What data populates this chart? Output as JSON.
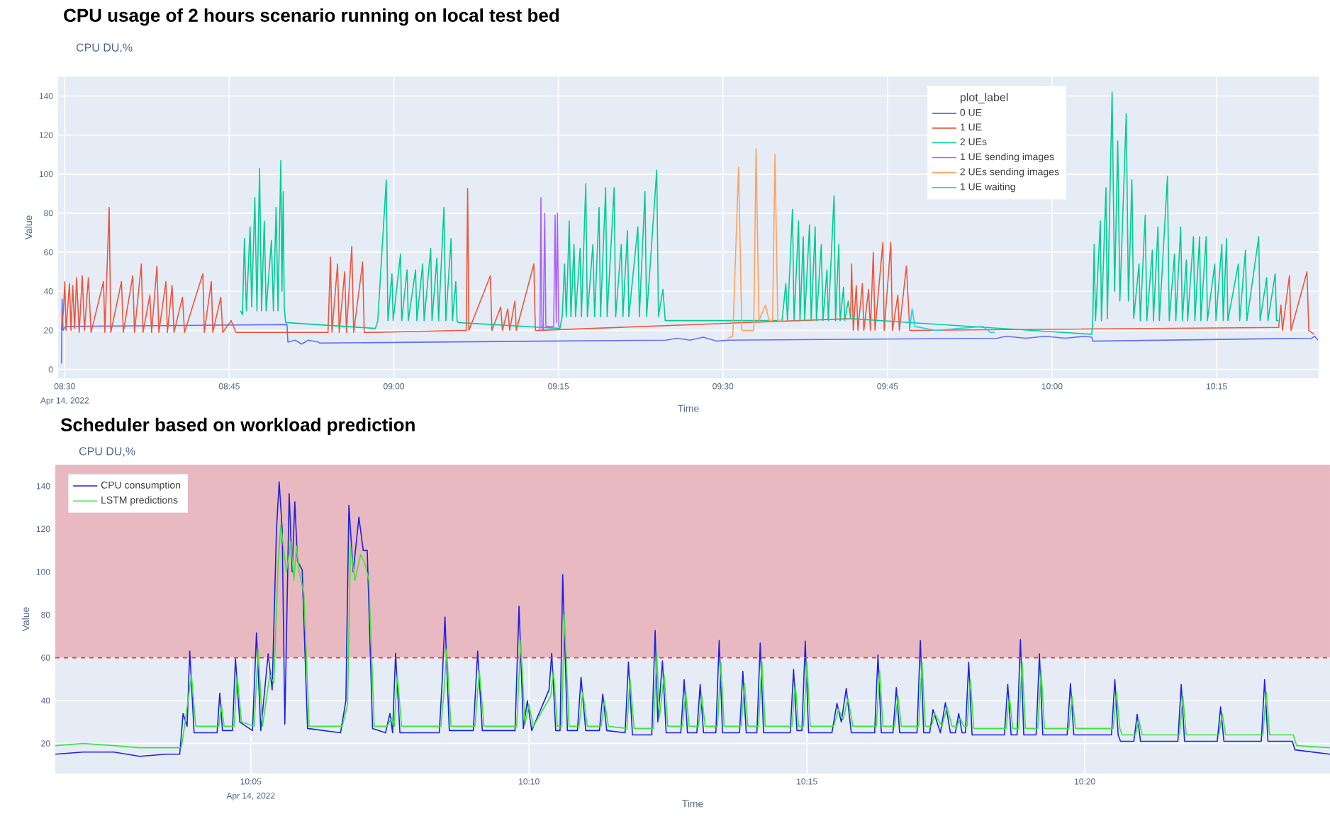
{
  "chart_data": [
    {
      "type": "line",
      "title": "CPU usage of 2 hours scenario running on local test bed",
      "subtitle": "CPU DU,%",
      "xlabel": "Time",
      "ylabel": "Value",
      "legend_title": "plot_label",
      "legend": "top right",
      "grid": true,
      "annotations": [
        "Apr 14, 2022"
      ],
      "xlim": [
        8.49,
        10.405
      ],
      "ylim": [
        -4.5,
        150
      ],
      "xticks": [
        {
          "value": 8.5,
          "label": "08:30"
        },
        {
          "value": 8.75,
          "label": "08:45"
        },
        {
          "value": 9.0,
          "label": "09:00"
        },
        {
          "value": 9.25,
          "label": "09:15"
        },
        {
          "value": 9.5,
          "label": "09:30"
        },
        {
          "value": 9.75,
          "label": "09:45"
        },
        {
          "value": 10.0,
          "label": "10:00"
        },
        {
          "value": 10.25,
          "label": "10:15"
        }
      ],
      "yticks": [
        0,
        20,
        40,
        60,
        80,
        100,
        120,
        140
      ],
      "series": [
        {
          "name": "0 UE",
          "color": "#636efa",
          "x": [
            8.495,
            8.496,
            8.4975,
            8.501,
            8.8377,
            8.839,
            8.85,
            8.86,
            8.87,
            8.8858,
            8.887,
            9.222,
            9.4138,
            9.43,
            9.45,
            9.47,
            9.49,
            9.5071,
            9.9166,
            9.93,
            9.96,
            9.99,
            10.02,
            10.05,
            10.0603,
            10.062,
            10.3944,
            10.399,
            10.404
          ],
          "values": [
            3,
            36,
            20,
            22,
            23,
            14,
            15,
            13,
            15,
            14,
            13.5,
            14.5,
            15,
            16,
            15,
            16.5,
            14.5,
            15,
            16,
            17,
            16,
            17,
            16,
            17,
            16.5,
            14.5,
            16,
            17,
            15
          ]
        },
        {
          "name": "1 UE",
          "color": "#ef553b",
          "x": [
            8.495,
            8.498,
            8.5001,
            8.502,
            8.5072,
            8.5095,
            8.5122,
            8.515,
            8.518,
            8.522,
            8.5266,
            8.53,
            8.5359,
            8.54,
            8.5589,
            8.561,
            8.5675,
            8.57,
            8.5862,
            8.589,
            8.6034,
            8.606,
            8.6164,
            8.619,
            8.6293,
            8.632,
            8.6401,
            8.643,
            8.6537,
            8.656,
            8.6631,
            8.666,
            8.6789,
            8.682,
            8.7098,
            8.712,
            8.7227,
            8.725,
            8.7371,
            8.74,
            8.7529,
            8.7601,
            8.8858,
            8.9,
            8.9037,
            8.906,
            8.9145,
            8.917,
            8.9253,
            8.928,
            8.9361,
            8.939,
            8.9526,
            8.955,
            8.972,
            9.0977,
            9.11,
            9.1121,
            9.114,
            9.1466,
            9.149,
            9.1624,
            9.165,
            9.1731,
            9.176,
            9.1839,
            9.186,
            9.2127,
            9.215,
            9.2198,
            9.694,
            9.6954,
            9.698,
            9.7026,
            9.705,
            9.7119,
            9.714,
            9.7213,
            9.724,
            9.7284,
            9.731,
            9.7429,
            9.745,
            9.755,
            9.7575,
            9.7657,
            9.768,
            9.7787,
            9.7838,
            10.3442,
            10.3477,
            10.35,
            10.3606,
            10.363,
            10.3873,
            10.39,
            10.398
          ],
          "values": [
            20,
            30,
            45,
            20,
            44,
            20,
            43,
            21,
            47,
            19,
            48,
            20,
            47,
            19,
            45,
            19,
            83,
            19,
            45,
            19,
            48,
            19,
            54,
            19,
            38,
            19,
            53,
            19,
            45,
            19,
            43,
            19,
            37,
            19,
            49,
            19,
            45,
            19,
            37,
            19,
            25,
            19,
            19,
            19,
            57.5,
            19,
            54,
            19,
            50,
            19,
            63,
            19,
            55,
            19,
            19,
            20,
            20,
            92.6,
            20,
            48,
            20,
            32,
            20,
            31,
            20,
            35,
            20,
            54,
            20,
            20,
            26,
            54,
            20,
            43,
            20,
            44,
            20,
            41,
            20,
            60,
            20,
            65,
            20,
            65,
            20,
            38,
            20,
            53,
            20,
            21.5,
            33,
            20,
            48,
            20,
            50,
            20,
            18
          ]
        },
        {
          "name": "2 UEs",
          "color": "#00cc96",
          "x": [
            8.7672,
            8.77,
            8.773,
            8.776,
            8.7816,
            8.784,
            8.7888,
            8.792,
            8.796,
            8.799,
            8.8032,
            8.806,
            8.814,
            8.817,
            8.8211,
            8.824,
            8.8283,
            8.83,
            8.8319,
            8.8335,
            8.8355,
            8.972,
            8.9756,
            8.9885,
            8.991,
            8.9971,
            8.999,
            9.0101,
            9.012,
            9.0201,
            9.022,
            9.033,
            9.035,
            9.0438,
            9.046,
            9.056,
            9.058,
            9.0654,
            9.068,
            9.0761,
            9.079,
            9.0869,
            9.089,
            9.0941,
            9.096,
            9.0977,
            9.2522,
            9.2558,
            9.2593,
            9.262,
            9.2665,
            9.269,
            9.2737,
            9.276,
            9.283,
            9.285,
            9.2916,
            9.294,
            9.3024,
            9.305,
            9.3118,
            9.314,
            9.3218,
            9.324,
            9.3347,
            9.337,
            9.3455,
            9.348,
            9.3549,
            9.357,
            9.3707,
            9.373,
            9.3815,
            9.384,
            9.3994,
            9.402,
            9.4088,
            9.4123,
            9.5898,
            9.5955,
            9.598,
            9.6056,
            9.608,
            9.6149,
            9.617,
            9.6221,
            9.624,
            9.6315,
            9.634,
            9.6401,
            9.642,
            9.6494,
            9.652,
            9.658,
            9.66,
            9.6688,
            9.671,
            9.676,
            9.678,
            9.6832,
            9.685,
            9.6904,
            9.694,
            10.0603,
            10.0618,
            10.0639,
            10.066,
            10.0733,
            10.075,
            10.0819,
            10.084,
            10.0912,
            10.095,
            10.0998,
            10.103,
            10.1127,
            10.116,
            10.1213,
            10.124,
            10.1321,
            10.134,
            10.1415,
            10.144,
            10.1523,
            10.154,
            10.1609,
            10.163,
            10.1753,
            10.178,
            10.186,
            10.188,
            10.1954,
            10.198,
            10.204,
            10.206,
            10.2148,
            10.217,
            10.2241,
            10.226,
            10.2341,
            10.236,
            10.2472,
            10.249,
            10.2579,
            10.26,
            10.2651,
            10.267,
            10.283,
            10.285,
            10.2938,
            10.296,
            10.314,
            10.316,
            10.3261,
            10.328,
            10.339,
            10.341,
            10.3442
          ],
          "values": [
            30,
            28,
            67,
            30,
            73,
            32,
            88,
            30,
            103,
            30,
            76,
            30,
            66,
            30,
            83,
            30,
            107,
            40,
            91,
            32,
            24,
            21,
            25,
            97,
            25,
            49,
            25,
            59,
            25,
            51,
            25,
            51,
            25,
            54,
            25,
            62,
            25,
            57,
            25,
            83,
            25,
            67,
            25,
            45,
            25,
            24,
            21,
            27,
            54,
            27,
            76,
            27,
            64,
            27,
            62,
            27,
            95,
            27,
            64,
            27,
            83,
            27,
            93,
            27,
            93,
            27,
            64,
            27,
            71,
            27,
            73,
            27,
            91,
            27,
            102,
            27,
            41,
            25,
            25,
            44,
            25,
            82,
            25,
            76,
            25,
            68,
            25,
            74,
            25,
            73,
            25,
            64,
            25,
            51,
            25,
            89,
            25,
            64,
            25,
            42,
            25,
            35,
            26,
            18,
            25,
            64,
            25,
            76,
            25,
            93,
            26,
            142,
            40,
            117,
            35,
            131,
            35,
            97,
            26,
            54,
            25,
            79,
            25,
            61,
            25,
            73,
            25,
            99,
            25,
            59,
            25,
            73,
            25,
            56,
            25,
            68,
            25,
            68,
            25,
            68,
            25,
            54,
            25,
            64,
            25,
            67,
            25,
            54,
            25,
            61,
            25,
            68,
            25,
            47,
            25,
            49,
            25,
            25
          ]
        },
        {
          "name": "1 UE sending images",
          "color": "#ab63fa",
          "x": [
            9.222,
            9.2234,
            9.225,
            9.227,
            9.2292,
            9.231,
            9.2328,
            9.2428,
            9.245,
            9.2468,
            9.2486,
            9.2505,
            9.2522
          ],
          "values": [
            20,
            88,
            22,
            20,
            80,
            22,
            22,
            22,
            79,
            24,
            80,
            22,
            22
          ]
        },
        {
          "name": "2 UEs sending images",
          "color": "#ffa15a",
          "x": [
            9.5071,
            9.515,
            9.5237,
            9.5287,
            9.5467,
            9.5503,
            9.5546,
            9.5647,
            9.57,
            9.5754,
            9.579,
            9.5833,
            9.5898
          ],
          "values": [
            16,
            17,
            103.5,
            20,
            20,
            113,
            25,
            33,
            25,
            25,
            110,
            25,
            25
          ]
        },
        {
          "name": "1 UE waiting",
          "color": "#19d3f3",
          "x": [
            9.7838,
            9.7873,
            9.7916,
            9.8233,
            9.8592,
            9.8951,
            9.9059,
            9.9131
          ],
          "values": [
            21,
            31,
            22,
            20,
            21,
            22,
            19,
            19
          ]
        }
      ]
    },
    {
      "type": "line",
      "title": "Scheduler based on workload prediction",
      "subtitle": "CPU DU,%",
      "xlabel": "Time",
      "ylabel": "Value",
      "legend": "top left",
      "grid": true,
      "annotations": [
        "Apr 14, 2022"
      ],
      "xlim": [
        10.0247,
        10.4068
      ],
      "ylim": [
        6,
        150
      ],
      "xticks": [
        {
          "value": 10.0833,
          "label": "10:05"
        },
        {
          "value": 10.1667,
          "label": "10:10"
        },
        {
          "value": 10.25,
          "label": "10:15"
        },
        {
          "value": 10.3333,
          "label": "10:20"
        }
      ],
      "yticks": [
        20,
        40,
        60,
        80,
        100,
        120,
        140
      ],
      "bands": [
        {
          "axis": "y",
          "from": 60,
          "to": 150,
          "color": "#e8b9c1"
        }
      ],
      "ref_lines": [
        {
          "axis": "y",
          "value": 60,
          "color": "#ef3b3b",
          "line_style": "dashed"
        }
      ],
      "series": [
        {
          "name": "CPU consumption",
          "color": "#2020e0",
          "x": [
            10.0247,
            10.033,
            10.0422,
            10.05,
            10.058,
            10.062,
            10.063,
            10.0642,
            10.065,
            10.0663,
            10.0732,
            10.074,
            10.0748,
            10.0778,
            10.0787,
            10.08,
            10.0838,
            10.085,
            10.0863,
            10.0885,
            10.0897,
            10.091,
            10.0918,
            10.0927,
            10.0935,
            10.0948,
            10.0957,
            10.0965,
            10.0973,
            10.0987,
            10.1003,
            10.1102,
            10.1118,
            10.1127,
            10.114,
            10.1157,
            10.117,
            10.1182,
            10.1198,
            10.1237,
            10.125,
            10.1258,
            10.1267,
            10.128,
            10.1398,
            10.1407,
            10.1415,
            10.1428,
            10.15,
            10.1513,
            10.1527,
            10.1625,
            10.1637,
            10.165,
            10.1662,
            10.1675,
            10.1727,
            10.1735,
            10.1747,
            10.176,
            10.1768,
            10.1782,
            10.1812,
            10.1823,
            10.1837,
            10.1878,
            10.1888,
            10.19,
            10.1955,
            10.1965,
            10.1977,
            10.2035,
            10.2045,
            10.2053,
            10.2067,
            10.2078,
            10.2122,
            10.2132,
            10.2142,
            10.217,
            10.218,
            10.219,
            10.2227,
            10.2237,
            10.2247,
            10.2298,
            10.2308,
            10.2318,
            10.235,
            10.236,
            10.237,
            10.245,
            10.246,
            10.247,
            10.2485,
            10.2495,
            10.2505,
            10.2575,
            10.259,
            10.2603,
            10.2618,
            10.2633,
            10.2703,
            10.2713,
            10.2723,
            10.2758,
            10.2768,
            10.2778,
            10.283,
            10.284,
            10.285,
            10.2868,
            10.2878,
            10.29,
            10.2915,
            10.293,
            10.2945,
            10.2955,
            10.2965,
            10.2975,
            10.2985,
            10.2995,
            10.3092,
            10.3102,
            10.3112,
            10.313,
            10.314,
            10.315,
            10.3187,
            10.3197,
            10.3207,
            10.328,
            10.329,
            10.33,
            10.3413,
            10.3423,
            10.3433,
            10.344,
            10.348,
            10.349,
            10.35,
            10.3612,
            10.3622,
            10.3632,
            10.373,
            10.374,
            10.375,
            10.3862,
            10.3872,
            10.3882,
            10.3955,
            10.3963,
            10.4068
          ],
          "values": [
            15,
            16,
            16,
            14,
            15,
            15,
            34,
            28,
            63,
            25,
            25,
            43.5,
            26,
            26,
            59.6,
            30,
            26,
            71.6,
            26,
            61.8,
            45,
            120,
            142,
            120,
            29,
            136.5,
            100,
            132.7,
            105,
            101,
            27,
            25,
            40,
            131,
            100,
            125.5,
            110,
            110,
            27,
            25,
            34,
            25,
            62,
            25,
            25,
            50,
            79,
            26,
            26,
            63,
            26,
            26,
            84,
            27,
            40,
            26,
            45,
            62,
            26,
            26,
            98.7,
            26,
            26,
            50.8,
            26,
            26,
            43,
            26,
            25,
            58,
            24,
            24,
            72.7,
            30,
            58.5,
            25,
            25,
            49.7,
            25,
            25,
            47.5,
            25,
            25,
            68,
            25,
            25,
            53.6,
            25,
            25,
            66.8,
            25,
            25,
            54.5,
            26,
            26,
            67.7,
            25,
            25,
            38.7,
            30,
            45.7,
            25,
            25,
            61.3,
            25,
            25,
            46,
            25,
            25,
            68,
            25,
            25,
            35.8,
            25,
            39,
            25,
            25,
            34,
            25,
            25,
            57.8,
            24,
            24,
            47.5,
            24,
            24,
            68.4,
            24,
            24,
            61.8,
            24,
            24,
            47.9,
            24,
            24,
            49.7,
            24,
            21,
            21,
            33.6,
            21,
            21,
            47.5,
            21,
            21,
            37,
            21,
            21,
            49.7,
            21,
            21,
            17,
            15
          ]
        },
        {
          "name": "LSTM predictions",
          "color": "#3ae63a",
          "x": [
            10.0247,
            10.033,
            10.0422,
            10.05,
            10.058,
            10.0625,
            10.0636,
            10.0655,
            10.0668,
            10.0737,
            10.0745,
            10.0753,
            10.0783,
            10.0792,
            10.0805,
            10.0843,
            10.0855,
            10.0868,
            10.089,
            10.0902,
            10.0915,
            10.0923,
            10.0932,
            10.094,
            10.0953,
            10.0962,
            10.097,
            10.0978,
            10.0992,
            10.1008,
            10.1107,
            10.1123,
            10.1132,
            10.1145,
            10.1162,
            10.1175,
            10.1187,
            10.1203,
            10.1242,
            10.1255,
            10.1263,
            10.1272,
            10.1285,
            10.1403,
            10.1412,
            10.142,
            10.1433,
            10.1505,
            10.1518,
            10.1532,
            10.163,
            10.1642,
            10.1655,
            10.1667,
            10.168,
            10.1732,
            10.174,
            10.1752,
            10.1765,
            10.1773,
            10.1787,
            10.1817,
            10.1828,
            10.1842,
            10.1883,
            10.1893,
            10.1905,
            10.196,
            10.197,
            10.1982,
            10.204,
            10.205,
            10.2058,
            10.2072,
            10.2083,
            10.2127,
            10.2137,
            10.2147,
            10.2175,
            10.2185,
            10.2195,
            10.2232,
            10.2242,
            10.2252,
            10.2303,
            10.2313,
            10.2323,
            10.2355,
            10.2365,
            10.2375,
            10.2455,
            10.2465,
            10.2475,
            10.249,
            10.25,
            10.251,
            10.258,
            10.2595,
            10.2608,
            10.2623,
            10.2638,
            10.2708,
            10.2718,
            10.2728,
            10.2763,
            10.2773,
            10.2783,
            10.2835,
            10.2845,
            10.2855,
            10.2873,
            10.2883,
            10.2905,
            10.292,
            10.2935,
            10.295,
            10.296,
            10.297,
            10.298,
            10.299,
            10.3,
            10.3097,
            10.3107,
            10.3117,
            10.3135,
            10.3145,
            10.3155,
            10.3192,
            10.3202,
            10.3212,
            10.3285,
            10.3295,
            10.3305,
            10.3418,
            10.3428,
            10.3438,
            10.3445,
            10.3485,
            10.3495,
            10.3505,
            10.3617,
            10.3627,
            10.3637,
            10.3735,
            10.3745,
            10.3755,
            10.3867,
            10.3877,
            10.3887,
            10.3958,
            10.3968,
            10.4068
          ],
          "values": [
            19,
            20,
            19,
            18,
            18,
            18,
            30,
            52,
            28,
            28,
            38,
            28,
            28,
            52,
            30,
            28,
            64,
            28,
            52,
            48,
            104,
            122,
            110,
            100,
            114,
            96,
            112,
            100,
            90,
            28,
            28,
            38,
            112,
            96,
            108,
            104,
            96,
            28,
            28,
            32,
            28,
            52,
            28,
            28,
            44,
            64,
            28,
            28,
            54,
            28,
            28,
            68,
            29,
            38,
            28,
            42,
            54,
            28,
            28,
            80,
            28,
            28,
            44,
            28,
            28,
            40,
            28,
            27,
            50,
            27,
            27,
            62,
            32,
            52,
            28,
            28,
            44,
            28,
            28,
            42,
            28,
            28,
            58,
            28,
            28,
            48,
            28,
            28,
            58,
            28,
            28,
            48,
            28,
            28,
            58,
            28,
            28,
            36,
            31,
            41,
            28,
            28,
            54,
            28,
            28,
            42,
            28,
            28,
            58,
            28,
            28,
            34,
            28,
            37,
            28,
            28,
            32,
            28,
            28,
            50,
            27,
            27,
            42,
            27,
            27,
            58,
            27,
            27,
            54,
            27,
            27,
            42,
            27,
            27,
            44,
            27,
            24,
            24,
            31,
            24,
            24,
            42,
            24,
            24,
            34,
            24,
            24,
            44,
            24,
            24,
            19,
            18
          ]
        }
      ]
    }
  ]
}
